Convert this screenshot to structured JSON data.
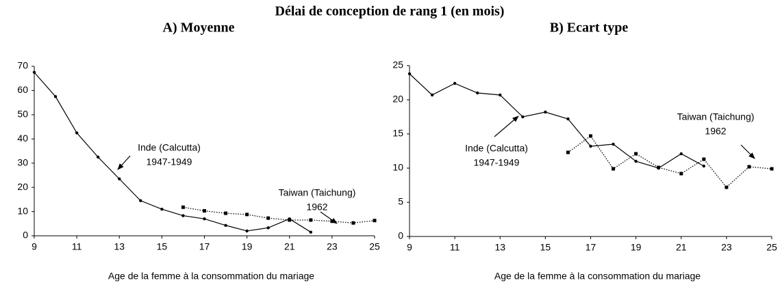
{
  "title": "Délai de conception de rang 1 (en mois)",
  "chart_data": [
    {
      "type": "line",
      "title": "A) Moyenne",
      "x_label": "Age de la femme à la consommation du mariage",
      "xlim": [
        9,
        25
      ],
      "xticks": [
        9,
        11,
        13,
        15,
        17,
        19,
        21,
        23,
        25
      ],
      "ylim": [
        0,
        70
      ],
      "yticks": [
        0,
        10,
        20,
        30,
        40,
        50,
        60,
        70
      ],
      "series": [
        {
          "name": "Inde (Calcutta)",
          "period": "1947-1949",
          "color": "#000000",
          "line_style": "solid",
          "marker": "circle",
          "x": [
            9,
            10,
            11,
            12,
            13,
            14,
            15,
            16,
            17,
            18,
            19,
            20,
            21,
            22
          ],
          "values": [
            67.5,
            57.5,
            42.5,
            32.5,
            23.5,
            14.5,
            11,
            8.3,
            7,
            4.3,
            2,
            3.3,
            7,
            1.5
          ]
        },
        {
          "name": "Taiwan (Taichung)",
          "period": "1962",
          "color": "#000000",
          "line_style": "dotted",
          "marker": "square",
          "x": [
            16,
            17,
            18,
            19,
            20,
            21,
            22,
            23,
            24,
            25
          ],
          "values": [
            11.8,
            10.3,
            9.3,
            8.8,
            7.3,
            6.5,
            6.5,
            6,
            5.3,
            6.3
          ]
        }
      ]
    },
    {
      "type": "line",
      "title": "B) Ecart type",
      "x_label": "Age de la femme à la consommation du mariage",
      "xlim": [
        9,
        25
      ],
      "xticks": [
        9,
        11,
        13,
        15,
        17,
        19,
        21,
        23,
        25
      ],
      "ylim": [
        0,
        25
      ],
      "yticks": [
        0,
        5,
        10,
        15,
        20,
        25
      ],
      "series": [
        {
          "name": "Inde (Calcutta)",
          "period": "1947-1949",
          "color": "#000000",
          "line_style": "solid",
          "marker": "circle",
          "x": [
            9,
            10,
            11,
            12,
            13,
            14,
            15,
            16,
            17,
            18,
            19,
            20,
            21,
            22
          ],
          "values": [
            23.8,
            20.7,
            22.4,
            21,
            20.7,
            17.5,
            18.2,
            17.2,
            13.2,
            13.5,
            11,
            10,
            12.1,
            10.3
          ]
        },
        {
          "name": "Taiwan (Taichung)",
          "period": "1962",
          "color": "#000000",
          "line_style": "dotted",
          "marker": "square",
          "x": [
            16,
            17,
            18,
            19,
            20,
            21,
            22,
            23,
            24,
            25
          ],
          "values": [
            12.3,
            14.7,
            9.9,
            12.1,
            10.1,
            9.2,
            11.3,
            7.2,
            10.2,
            9.9
          ]
        }
      ]
    }
  ]
}
